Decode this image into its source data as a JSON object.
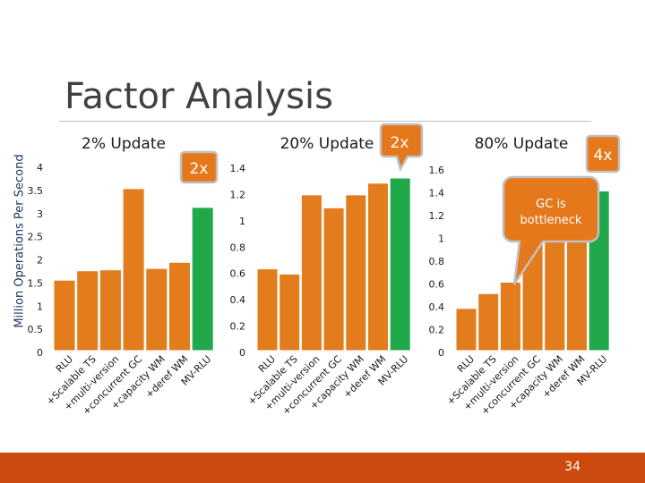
{
  "title": "Factor Analysis",
  "y_axis_label": "Million Operations Per Second",
  "slide_number": "34",
  "colors": {
    "bar": "#e37c1c",
    "bar_highlight": "#21a84a",
    "bar_stroke": "#ffffff",
    "footer": "#cc4a0e",
    "callout": "#e5781b"
  },
  "annotations": {
    "c1_factor": "2x",
    "c2_factor": "2x",
    "c3_factor": "4x",
    "c3_callout_line1": "GC is",
    "c3_callout_line2": "bottleneck"
  },
  "chart_data": [
    {
      "type": "bar",
      "title": "2% Update",
      "categories": [
        "RLU",
        "+Scalable TS",
        "+multi-version",
        "+concurrent GC",
        "+capacity WM",
        "+deref WM",
        "MV-RLU"
      ],
      "values": [
        1.5,
        1.7,
        1.72,
        3.45,
        1.75,
        1.88,
        3.05
      ],
      "highlight": [
        false,
        false,
        false,
        false,
        false,
        false,
        true
      ],
      "yticks": [
        "4",
        "3.5",
        "3",
        "2.5",
        "2",
        "1.5",
        "1",
        "0.5",
        "0"
      ],
      "ylim": [
        0,
        4
      ]
    },
    {
      "type": "bar",
      "title": "20% Update",
      "categories": [
        "RLU",
        "+Scalable TS",
        "+multi-version",
        "+concurrent GC",
        "+capacity WM",
        "+deref WM",
        "MV-RLU"
      ],
      "values": [
        0.63,
        0.59,
        1.2,
        1.1,
        1.2,
        1.29,
        1.33
      ],
      "highlight": [
        false,
        false,
        false,
        false,
        false,
        false,
        true
      ],
      "yticks": [
        "1.4",
        "1.2",
        "1",
        "0.8",
        "0.6",
        "0.4",
        "0.2",
        "0"
      ],
      "ylim": [
        0,
        1.33
      ]
    },
    {
      "type": "bar",
      "title": "80% Update",
      "categories": [
        "RLU",
        "+Scalable TS",
        "+multi-version",
        "+concurrent GC",
        "+capacity WM",
        "+deref WM",
        "MV-RLU"
      ],
      "values": [
        0.37,
        0.5,
        0.6,
        1.05,
        1.05,
        1.08,
        1.4
      ],
      "highlight": [
        false,
        false,
        false,
        false,
        false,
        false,
        true
      ],
      "yticks": [
        "1.6",
        "1.4",
        "1.2",
        "1",
        "0.8",
        "0.6",
        "0.4",
        "0.2",
        "0"
      ],
      "ylim": [
        0,
        1.6
      ]
    }
  ]
}
